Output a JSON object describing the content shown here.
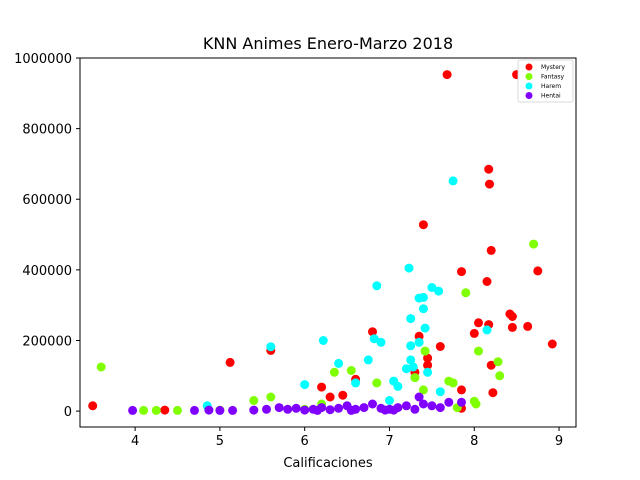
{
  "chart_data": {
    "type": "scatter",
    "title": "KNN Animes Enero-Marzo 2018",
    "xlabel": "Calificaciones",
    "ylabel": "",
    "xlim": [
      3.35,
      9.2
    ],
    "ylim": [
      -45000,
      1000000
    ],
    "xticks": [
      "4",
      "5",
      "6",
      "7",
      "8",
      "9"
    ],
    "yticks": [
      "0",
      "200000",
      "400000",
      "600000",
      "800000",
      "1000000"
    ],
    "grid": false,
    "legend_position": "top-right",
    "series": [
      {
        "name": "Mystery",
        "color": "#ff0000",
        "points": [
          [
            3.5,
            15000
          ],
          [
            4.35,
            3000
          ],
          [
            5.12,
            138000
          ],
          [
            5.6,
            172000
          ],
          [
            6.2,
            68000
          ],
          [
            6.3,
            40000
          ],
          [
            6.45,
            45000
          ],
          [
            6.6,
            90000
          ],
          [
            6.8,
            225000
          ],
          [
            7.3,
            110000
          ],
          [
            7.35,
            212000
          ],
          [
            7.4,
            528000
          ],
          [
            7.45,
            150000
          ],
          [
            7.45,
            130000
          ],
          [
            7.6,
            183000
          ],
          [
            7.68,
            953000
          ],
          [
            7.85,
            60000
          ],
          [
            7.85,
            395000
          ],
          [
            7.85,
            8000
          ],
          [
            8.05,
            250000
          ],
          [
            8.0,
            220000
          ],
          [
            8.17,
            685000
          ],
          [
            8.18,
            643000
          ],
          [
            8.15,
            367000
          ],
          [
            8.17,
            245000
          ],
          [
            8.2,
            455000
          ],
          [
            8.2,
            130000
          ],
          [
            8.22,
            52000
          ],
          [
            8.42,
            275000
          ],
          [
            8.45,
            268000
          ],
          [
            8.45,
            237000
          ],
          [
            8.5,
            953000
          ],
          [
            8.63,
            240000
          ],
          [
            8.75,
            397000
          ],
          [
            8.92,
            190000
          ]
        ]
      },
      {
        "name": "Fantasy",
        "color": "#80ff00",
        "points": [
          [
            3.6,
            125000
          ],
          [
            4.1,
            2000
          ],
          [
            4.25,
            2000
          ],
          [
            4.5,
            2000
          ],
          [
            5.4,
            30000
          ],
          [
            5.6,
            40000
          ],
          [
            6.2,
            20000
          ],
          [
            6.35,
            110000
          ],
          [
            6.55,
            115000
          ],
          [
            6.85,
            80000
          ],
          [
            7.3,
            95000
          ],
          [
            7.4,
            60000
          ],
          [
            7.42,
            170000
          ],
          [
            7.7,
            85000
          ],
          [
            7.75,
            80000
          ],
          [
            7.9,
            335000
          ],
          [
            8.0,
            28000
          ],
          [
            8.02,
            20000
          ],
          [
            8.05,
            170000
          ],
          [
            8.28,
            140000
          ],
          [
            8.3,
            100000
          ],
          [
            8.7,
            473000
          ],
          [
            7.8,
            10000
          ],
          [
            6.0,
            5000
          ],
          [
            5.0,
            3000
          ]
        ]
      },
      {
        "name": "Harem",
        "color": "#00ffff",
        "points": [
          [
            4.85,
            15000
          ],
          [
            5.6,
            182000
          ],
          [
            6.0,
            75000
          ],
          [
            6.22,
            200000
          ],
          [
            6.4,
            135000
          ],
          [
            6.6,
            80000
          ],
          [
            6.75,
            145000
          ],
          [
            6.82,
            205000
          ],
          [
            6.85,
            355000
          ],
          [
            6.9,
            195000
          ],
          [
            7.05,
            85000
          ],
          [
            7.1,
            70000
          ],
          [
            7.2,
            120000
          ],
          [
            7.23,
            405000
          ],
          [
            7.25,
            262000
          ],
          [
            7.25,
            185000
          ],
          [
            7.25,
            145000
          ],
          [
            7.28,
            125000
          ],
          [
            7.35,
            195000
          ],
          [
            7.35,
            320000
          ],
          [
            7.4,
            322000
          ],
          [
            7.4,
            290000
          ],
          [
            7.42,
            235000
          ],
          [
            7.45,
            110000
          ],
          [
            7.5,
            350000
          ],
          [
            7.58,
            340000
          ],
          [
            7.6,
            55000
          ],
          [
            7.75,
            652000
          ],
          [
            8.15,
            230000
          ],
          [
            7.0,
            30000
          ]
        ]
      },
      {
        "name": "Hentai",
        "color": "#8000ff",
        "points": [
          [
            3.97,
            2000
          ],
          [
            4.7,
            2000
          ],
          [
            4.87,
            3000
          ],
          [
            5.0,
            2000
          ],
          [
            5.15,
            2000
          ],
          [
            5.4,
            3000
          ],
          [
            5.55,
            5000
          ],
          [
            5.7,
            10000
          ],
          [
            5.8,
            5000
          ],
          [
            5.9,
            8000
          ],
          [
            6.0,
            3000
          ],
          [
            6.1,
            5000
          ],
          [
            6.2,
            10000
          ],
          [
            6.3,
            4000
          ],
          [
            6.4,
            8000
          ],
          [
            6.5,
            15000
          ],
          [
            6.6,
            5000
          ],
          [
            6.7,
            10000
          ],
          [
            6.8,
            20000
          ],
          [
            6.9,
            8000
          ],
          [
            7.0,
            5000
          ],
          [
            7.1,
            10000
          ],
          [
            7.2,
            15000
          ],
          [
            7.3,
            5000
          ],
          [
            7.4,
            20000
          ],
          [
            7.5,
            15000
          ],
          [
            7.6,
            10000
          ],
          [
            7.7,
            25000
          ],
          [
            7.85,
            25000
          ],
          [
            6.15,
            2000
          ],
          [
            6.55,
            2000
          ],
          [
            7.05,
            3000
          ],
          [
            7.35,
            40000
          ],
          [
            6.95,
            3000
          ]
        ]
      }
    ]
  }
}
